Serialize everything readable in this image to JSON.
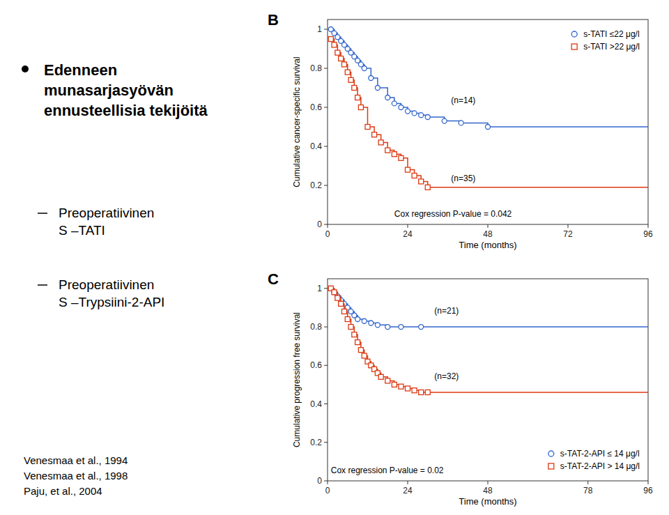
{
  "chart_data": [
    {
      "type": "text",
      "title": "Edenneen\nmunasarjasyövän\nennusteellisia tekijöitä",
      "annotations": [
        {
          "text": "Preoperatiivinen\nS –TATI"
        },
        {
          "text": "Preoperatiivinen\nS –Trypsiini-2-API"
        },
        {
          "text": "Venesmaa et al., 1994\nVenesmaa et al., 1998\nPaju, et al., 2004"
        }
      ]
    },
    {
      "type": "step",
      "title": "B",
      "xlabel": "Time (months)",
      "ylabel": "Cumulative cancer-specific survival",
      "xlim": [
        0,
        96
      ],
      "ylim": [
        0,
        1.05
      ],
      "xticks": [
        0,
        24,
        48,
        72,
        96
      ],
      "yticks": [
        0,
        0.2,
        0.4,
        0.6,
        0.8,
        1
      ],
      "grid": false,
      "legend": "upper right",
      "series": [
        {
          "name": "s-TATI ≤22 μg/l",
          "marker": "circle",
          "color": "#3366cc",
          "x": [
            1,
            2,
            3,
            4,
            5,
            6,
            7,
            8,
            9,
            10,
            11,
            13,
            15,
            18,
            20,
            22,
            24,
            26,
            28,
            30,
            35,
            40,
            48
          ],
          "values": [
            1.0,
            0.98,
            0.96,
            0.94,
            0.92,
            0.9,
            0.88,
            0.86,
            0.84,
            0.82,
            0.8,
            0.75,
            0.7,
            0.65,
            0.62,
            0.6,
            0.58,
            0.57,
            0.56,
            0.55,
            0.53,
            0.52,
            0.5
          ],
          "last_x": 96,
          "last_value": 0.5
        },
        {
          "name": "s-TATI >22 μg/l",
          "marker": "square",
          "color": "#dc3912",
          "x": [
            1,
            2,
            3,
            4,
            5,
            6,
            7,
            8,
            9,
            10,
            12,
            14,
            16,
            18,
            20,
            22,
            24,
            26,
            28,
            30
          ],
          "values": [
            0.95,
            0.92,
            0.88,
            0.85,
            0.82,
            0.78,
            0.74,
            0.7,
            0.65,
            0.6,
            0.5,
            0.46,
            0.42,
            0.38,
            0.36,
            0.34,
            0.28,
            0.25,
            0.22,
            0.19
          ],
          "last_x": 96,
          "last_value": 0.19
        }
      ],
      "annotations": [
        {
          "text": "(n=14)",
          "x": 37,
          "y": 0.62
        },
        {
          "text": "(n=35)",
          "x": 37,
          "y": 0.22
        },
        {
          "text": "Cox regression P-value = 0.042",
          "x": 20,
          "y": 0.04
        }
      ]
    },
    {
      "type": "step",
      "title": "C",
      "xlabel": "Time (months)",
      "ylabel": "Cumulative progression free survival",
      "xlim": [
        0,
        96
      ],
      "ylim": [
        0,
        1.05
      ],
      "xticks": [
        0,
        24,
        48,
        78,
        96
      ],
      "yticks": [
        0,
        0.2,
        0.4,
        0.6,
        0.8,
        1
      ],
      "grid": false,
      "legend": "lower right",
      "series": [
        {
          "name": "s-TAT-2-API ≤ 14 μg/l",
          "marker": "circle",
          "color": "#3366cc",
          "x": [
            1,
            2,
            3,
            4,
            5,
            6,
            7,
            8,
            9,
            11,
            13,
            15,
            18,
            22,
            28
          ],
          "values": [
            1.0,
            0.98,
            0.96,
            0.94,
            0.92,
            0.9,
            0.88,
            0.86,
            0.84,
            0.83,
            0.82,
            0.81,
            0.8,
            0.8,
            0.8
          ],
          "last_x": 96,
          "last_value": 0.8
        },
        {
          "name": "s-TAT-2-API > 14 μg/l",
          "marker": "square",
          "color": "#dc3912",
          "x": [
            1,
            2,
            3,
            4,
            5,
            6,
            7,
            8,
            9,
            10,
            11,
            12,
            13,
            14,
            15,
            16,
            18,
            20,
            22,
            24,
            26,
            28,
            30
          ],
          "values": [
            1.0,
            0.98,
            0.95,
            0.92,
            0.88,
            0.84,
            0.8,
            0.76,
            0.72,
            0.68,
            0.65,
            0.62,
            0.6,
            0.58,
            0.56,
            0.54,
            0.52,
            0.5,
            0.49,
            0.48,
            0.47,
            0.46,
            0.46
          ],
          "last_x": 96,
          "last_value": 0.46
        }
      ],
      "annotations": [
        {
          "text": "(n=21)",
          "x": 32,
          "y": 0.87
        },
        {
          "text": "(n=32)",
          "x": 32,
          "y": 0.53
        },
        {
          "text": "Cox regression P-value = 0.02",
          "x": 1,
          "y": 0.04
        }
      ]
    }
  ]
}
